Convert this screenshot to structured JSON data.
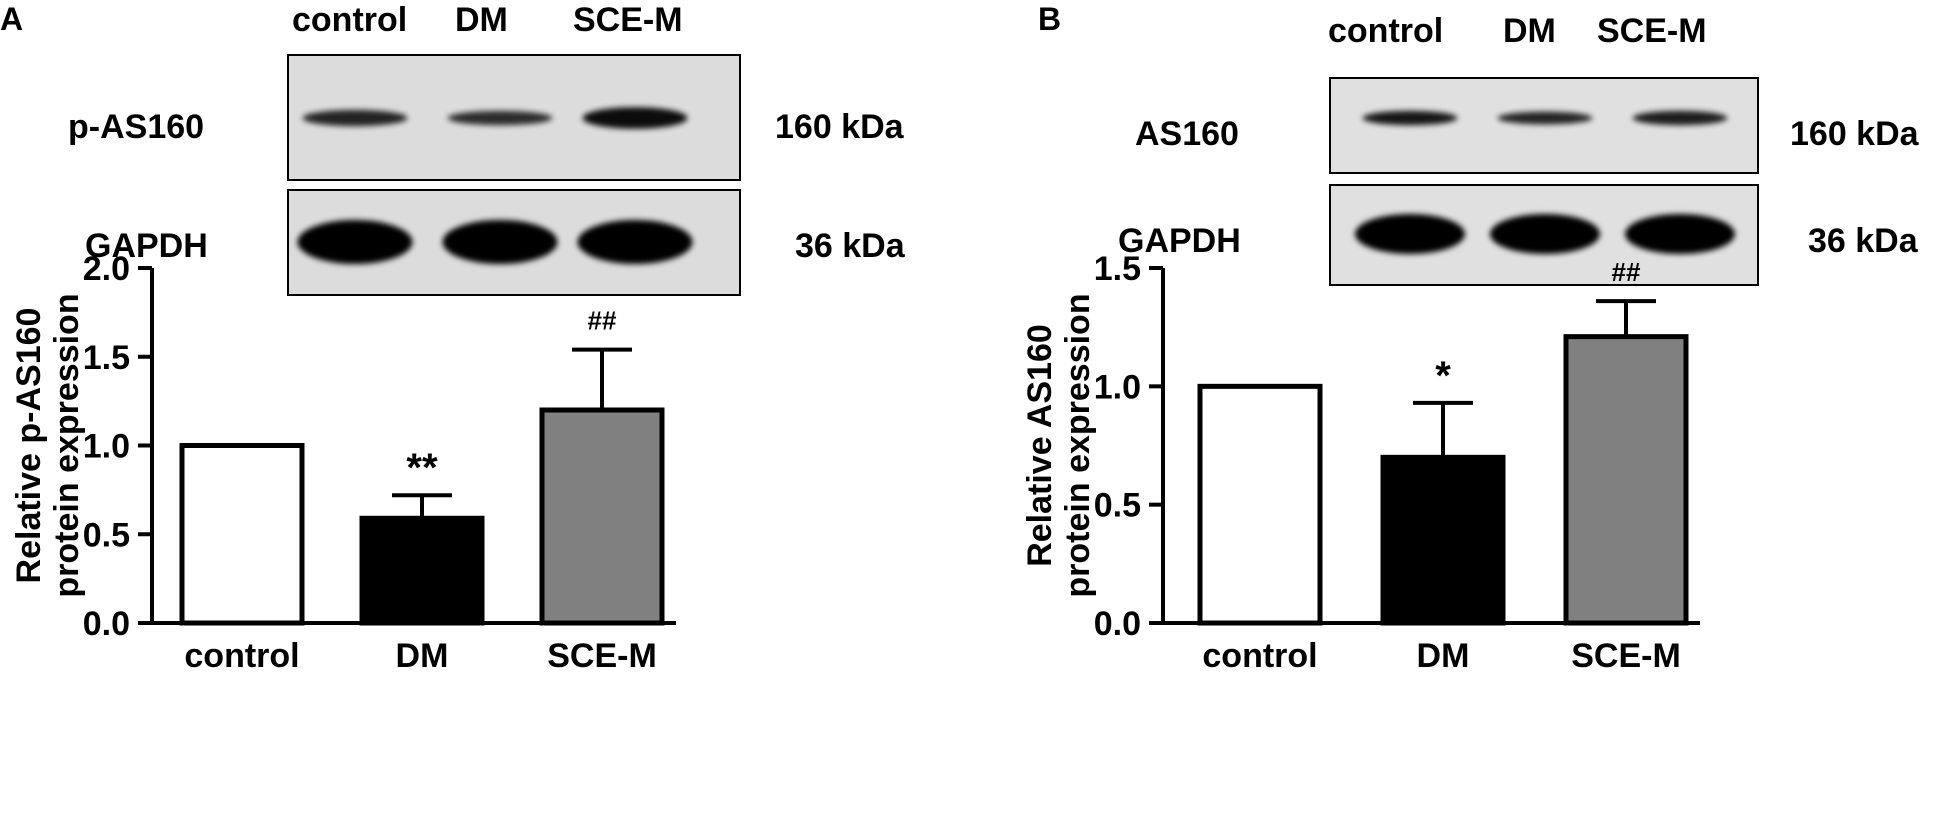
{
  "panels": [
    {
      "letter": "A",
      "lanes": [
        "control",
        "DM",
        "SCE-M"
      ],
      "blots": [
        {
          "protein": "p-AS160",
          "size": "160 kDa",
          "band_intensity": [
            0.75,
            0.7,
            0.9
          ],
          "band_thickness": [
            0.45,
            0.4,
            0.6
          ]
        },
        {
          "protein": "GAPDH",
          "size": "36 kDa",
          "band_intensity": [
            1.0,
            1.0,
            1.0
          ],
          "band_thickness": [
            1.0,
            1.0,
            1.0
          ]
        }
      ]
    },
    {
      "letter": "B",
      "lanes": [
        "control",
        "DM",
        "SCE-M"
      ],
      "blots": [
        {
          "protein": "AS160",
          "size": "160 kDa",
          "band_intensity": [
            0.85,
            0.75,
            0.8
          ],
          "band_thickness": [
            0.45,
            0.4,
            0.45
          ]
        },
        {
          "protein": "GAPDH",
          "size": "36 kDa",
          "band_intensity": [
            1.0,
            1.0,
            1.0
          ],
          "band_thickness": [
            1.0,
            1.0,
            1.0
          ]
        }
      ]
    }
  ],
  "chart_data": [
    {
      "type": "bar",
      "panel": "A",
      "categories": [
        "control",
        "DM",
        "SCE-M"
      ],
      "values": [
        1.0,
        0.59,
        1.2
      ],
      "error": [
        0.0,
        0.13,
        0.34
      ],
      "colors": [
        "#ffffff",
        "#000000",
        "#808080"
      ],
      "significance": [
        "",
        "**",
        "##"
      ],
      "ylabel": [
        "Relative p-AS160",
        "protein expression"
      ],
      "ylim": [
        0,
        2.0
      ],
      "yticks": [
        0.0,
        0.5,
        1.0,
        1.5,
        2.0
      ],
      "tick_labels": [
        "0.0",
        "0.5",
        "1.0",
        "1.5",
        "2.0"
      ]
    },
    {
      "type": "bar",
      "panel": "B",
      "categories": [
        "control",
        "DM",
        "SCE-M"
      ],
      "values": [
        1.0,
        0.7,
        1.21
      ],
      "error": [
        0.0,
        0.23,
        0.15
      ],
      "colors": [
        "#ffffff",
        "#000000",
        "#808080"
      ],
      "significance": [
        "",
        "*",
        "##"
      ],
      "ylabel": [
        "Relative AS160",
        "protein expression"
      ],
      "ylim": [
        0,
        1.5
      ],
      "yticks": [
        0.0,
        0.5,
        1.0,
        1.5
      ],
      "tick_labels": [
        "0.0",
        "0.5",
        "1.0",
        "1.5"
      ]
    }
  ]
}
